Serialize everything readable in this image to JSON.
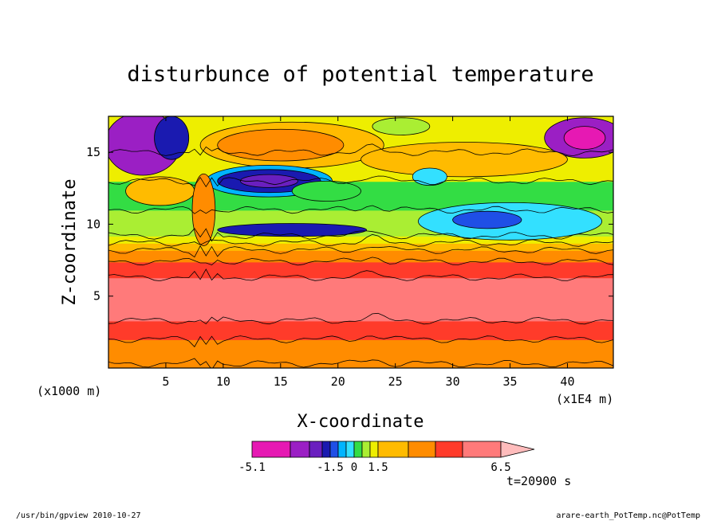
{
  "chart_data": {
    "type": "heatmap",
    "title": "disturbunce of potential temperature",
    "xlabel": "X-coordinate",
    "ylabel": "Z-coordinate",
    "x_unit": "(x1E4 m)",
    "y_unit": "(x1000 m)",
    "x_ticks": [
      5,
      10,
      15,
      20,
      25,
      30,
      35,
      40
    ],
    "y_ticks": [
      5,
      10,
      15
    ],
    "xlim": [
      0,
      44
    ],
    "ylim": [
      0,
      17.5
    ],
    "grid": false,
    "time_label": "t=20900 s",
    "colorbar": {
      "tick_labels": [
        "-5.1",
        "-1.5",
        "0",
        "1.5",
        "6.5"
      ],
      "tick_values": [
        -5.1,
        -1.5,
        0,
        1.5,
        6.5
      ],
      "levels": [
        -5.1,
        -3.9,
        -3.0,
        -2.1,
        -1.5,
        -1.0,
        -0.5,
        0,
        0.5,
        1.0,
        1.5,
        2.7,
        3.9,
        5.2,
        6.5
      ],
      "colors": [
        "#e619b3",
        "#9b1fc4",
        "#6a1fbf",
        "#1a1ab0",
        "#1f4fe6",
        "#00b4ff",
        "#33e0ff",
        "#33dd44",
        "#aaee33",
        "#eeee00",
        "#ffbb00",
        "#ff8c00",
        "#ff3b2a",
        "#ff7a7a",
        "#ffbcbc"
      ]
    },
    "bands": [
      {
        "z": [
          0.0,
          0.3
        ],
        "level": 11
      },
      {
        "z": [
          0.3,
          2.0
        ],
        "level": 11
      },
      {
        "z": [
          2.0,
          3.3
        ],
        "level": 12
      },
      {
        "z": [
          3.3,
          6.3
        ],
        "level": 13
      },
      {
        "z": [
          6.3,
          7.4
        ],
        "level": 12
      },
      {
        "z": [
          7.4,
          8.2
        ],
        "level": 11
      },
      {
        "z": [
          8.2,
          8.7
        ],
        "level": 10
      },
      {
        "z": [
          8.7,
          9.2
        ],
        "level": 9
      },
      {
        "z": [
          9.2,
          11.0
        ],
        "level": 8
      },
      {
        "z": [
          11.0,
          13.0
        ],
        "level": 7
      },
      {
        "z": [
          13.0,
          15.0
        ],
        "level": 9
      },
      {
        "z": [
          15.0,
          17.5
        ],
        "level": 9
      }
    ],
    "features": [
      {
        "x": 2.0,
        "z": 15.6,
        "rx": 2.2,
        "rz": 1.5,
        "level": 0
      },
      {
        "x": 3.0,
        "z": 15.6,
        "rx": 3.3,
        "rz": 2.2,
        "level": 1
      },
      {
        "x": 5.5,
        "z": 16.0,
        "rx": 1.5,
        "rz": 1.5,
        "level": 3
      },
      {
        "x": 4.5,
        "z": 12.3,
        "rx": 3.0,
        "rz": 1.0,
        "level": 10
      },
      {
        "x": 16.0,
        "z": 15.5,
        "rx": 8.0,
        "rz": 1.6,
        "level": 10
      },
      {
        "x": 15.0,
        "z": 15.5,
        "rx": 5.5,
        "rz": 1.1,
        "level": 11
      },
      {
        "x": 14.0,
        "z": 13.0,
        "rx": 5.5,
        "rz": 1.1,
        "level": 5
      },
      {
        "x": 14.0,
        "z": 13.0,
        "rx": 4.5,
        "rz": 0.8,
        "level": 3
      },
      {
        "x": 14.0,
        "z": 13.0,
        "rx": 2.5,
        "rz": 0.45,
        "level": 2
      },
      {
        "x": 19.0,
        "z": 12.3,
        "rx": 3.0,
        "rz": 0.7,
        "level": 7
      },
      {
        "x": 16.0,
        "z": 9.6,
        "rx": 6.5,
        "rz": 0.45,
        "level": 3
      },
      {
        "x": 35.0,
        "z": 10.2,
        "rx": 8.0,
        "rz": 1.3,
        "level": 6
      },
      {
        "x": 33.0,
        "z": 10.3,
        "rx": 3.0,
        "rz": 0.6,
        "level": 4
      },
      {
        "x": 41.5,
        "z": 16.0,
        "rx": 3.5,
        "rz": 1.4,
        "level": 1
      },
      {
        "x": 41.5,
        "z": 16.0,
        "rx": 1.8,
        "rz": 0.8,
        "level": 0
      },
      {
        "x": 31.0,
        "z": 14.5,
        "rx": 9.0,
        "rz": 1.2,
        "level": 10
      },
      {
        "x": 25.5,
        "z": 16.8,
        "rx": 2.5,
        "rz": 0.6,
        "level": 8
      },
      {
        "x": 28.0,
        "z": 13.3,
        "rx": 1.5,
        "rz": 0.6,
        "level": 6
      },
      {
        "x": 8.3,
        "z": 11.0,
        "rx": 1.0,
        "rz": 2.5,
        "level": 11
      }
    ]
  },
  "footer": {
    "left": "/usr/bin/gpview   2010-10-27",
    "right": "arare-earth_PotTemp.nc@PotTemp"
  }
}
